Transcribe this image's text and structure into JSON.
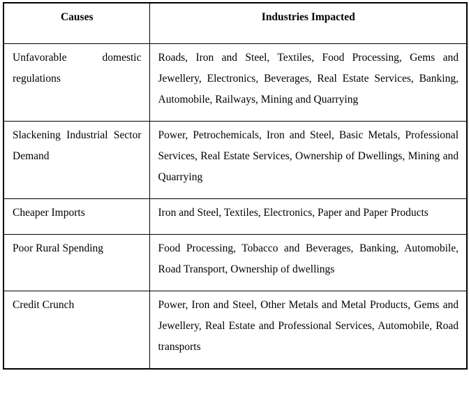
{
  "colors": {
    "border": "#000000",
    "text": "#000000",
    "background": "#ffffff"
  },
  "table": {
    "headers": [
      "Causes",
      "Industries Impacted"
    ],
    "rows": [
      {
        "cause": "Unfavorable domestic regulations",
        "industries": "Roads, Iron and Steel, Textiles, Food Processing, Gems and Jewellery, Electronics, Beverages, Real Estate Services, Banking, Automobile, Railways, Mining and Quarrying"
      },
      {
        "cause": "Slackening Industrial Sector Demand",
        "industries": "Power, Petrochemicals, Iron and Steel, Basic Metals, Professional Services, Real Estate Services, Ownership of Dwellings, Mining and Quarrying"
      },
      {
        "cause": "Cheaper Imports",
        "industries": "Iron and Steel, Textiles, Electronics, Paper and Paper Products"
      },
      {
        "cause": "Poor Rural Spending",
        "industries": "Food Processing, Tobacco and Beverages, Banking, Automobile, Road Transport, Ownership of dwellings"
      },
      {
        "cause": "Credit Crunch",
        "industries": "Power, Iron and Steel, Other Metals and Metal Products, Gems and Jewellery, Real Estate and Professional Services, Automobile, Road transports"
      }
    ]
  }
}
